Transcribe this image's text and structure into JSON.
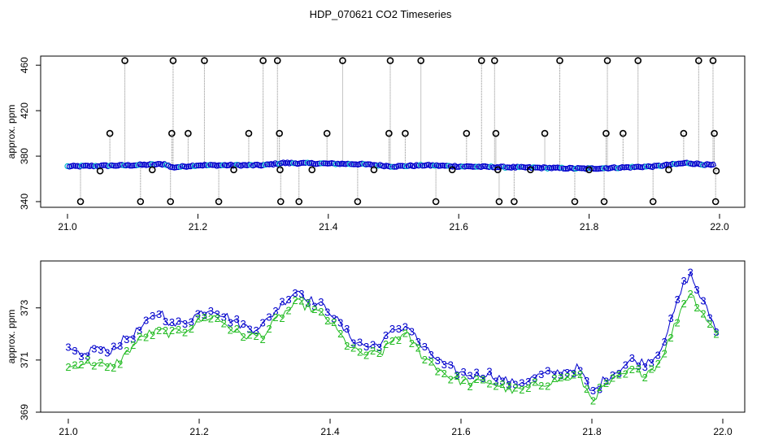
{
  "title": "HDP_070621  CO2 Timeseries",
  "colors": {
    "frame": "#000000",
    "series_gray": "#888888",
    "series_blue": "#0000cc",
    "series_green": "#22bb22",
    "series_cyan": "#00bbcc",
    "marker": "#000000"
  },
  "chart_data": [
    {
      "type": "scatter",
      "ylabel": "approx. ppm",
      "xlim": [
        21.0,
        22.0
      ],
      "ylim": [
        335,
        468
      ],
      "xticks": [
        "21.0",
        "21.2",
        "21.4",
        "21.6",
        "21.8",
        "22.0"
      ],
      "yticks": [
        "340",
        "380",
        "420",
        "460"
      ],
      "baseline": [
        [
          21.0,
          371
        ],
        [
          21.1,
          372
        ],
        [
          21.15,
          373
        ],
        [
          21.16,
          370
        ],
        [
          21.2,
          372
        ],
        [
          21.3,
          372
        ],
        [
          21.33,
          374
        ],
        [
          21.45,
          373
        ],
        [
          21.5,
          371
        ],
        [
          21.55,
          372
        ],
        [
          21.6,
          371
        ],
        [
          21.7,
          370
        ],
        [
          21.8,
          369
        ],
        [
          21.85,
          370
        ],
        [
          21.9,
          371
        ],
        [
          21.95,
          374
        ],
        [
          21.99,
          372
        ]
      ],
      "outliers": [
        [
          21.02,
          340
        ],
        [
          21.05,
          367
        ],
        [
          21.065,
          400
        ],
        [
          21.088,
          464
        ],
        [
          21.112,
          340
        ],
        [
          21.13,
          368
        ],
        [
          21.158,
          340
        ],
        [
          21.16,
          400
        ],
        [
          21.162,
          464
        ],
        [
          21.185,
          400
        ],
        [
          21.21,
          464
        ],
        [
          21.232,
          340
        ],
        [
          21.255,
          368
        ],
        [
          21.278,
          400
        ],
        [
          21.3,
          464
        ],
        [
          21.322,
          464
        ],
        [
          21.325,
          400
        ],
        [
          21.327,
          340
        ],
        [
          21.326,
          368
        ],
        [
          21.355,
          340
        ],
        [
          21.375,
          368
        ],
        [
          21.398,
          400
        ],
        [
          21.422,
          464
        ],
        [
          21.445,
          340
        ],
        [
          21.47,
          368
        ],
        [
          21.493,
          400
        ],
        [
          21.495,
          464
        ],
        [
          21.518,
          400
        ],
        [
          21.542,
          464
        ],
        [
          21.565,
          340
        ],
        [
          21.59,
          368
        ],
        [
          21.612,
          400
        ],
        [
          21.635,
          464
        ],
        [
          21.655,
          464
        ],
        [
          21.657,
          400
        ],
        [
          21.66,
          368
        ],
        [
          21.662,
          340
        ],
        [
          21.685,
          340
        ],
        [
          21.71,
          368
        ],
        [
          21.732,
          400
        ],
        [
          21.755,
          464
        ],
        [
          21.778,
          340
        ],
        [
          21.8,
          368
        ],
        [
          21.823,
          340
        ],
        [
          21.826,
          400
        ],
        [
          21.828,
          464
        ],
        [
          21.852,
          400
        ],
        [
          21.875,
          464
        ],
        [
          21.898,
          340
        ],
        [
          21.922,
          368
        ],
        [
          21.945,
          400
        ],
        [
          21.968,
          464
        ],
        [
          21.99,
          464
        ],
        [
          21.992,
          400
        ],
        [
          21.994,
          340
        ],
        [
          21.995,
          367
        ]
      ]
    },
    {
      "type": "line",
      "ylabel": "approx. ppm",
      "xlim": [
        21.0,
        22.0
      ],
      "ylim": [
        369,
        374.8
      ],
      "xticks": [
        "21.0",
        "21.2",
        "21.4",
        "21.6",
        "21.8",
        "22.0"
      ],
      "yticks": [
        "369",
        "371",
        "373"
      ],
      "series": [
        {
          "marker": "3",
          "points": [
            [
              21.0,
              371.4
            ],
            [
              21.02,
              371.1
            ],
            [
              21.04,
              371.5
            ],
            [
              21.06,
              371.3
            ],
            [
              21.08,
              371.7
            ],
            [
              21.1,
              372.0
            ],
            [
              21.12,
              372.4
            ],
            [
              21.14,
              372.9
            ],
            [
              21.16,
              372.3
            ],
            [
              21.18,
              372.5
            ],
            [
              21.2,
              372.8
            ],
            [
              21.22,
              373.0
            ],
            [
              21.24,
              372.7
            ],
            [
              21.26,
              372.4
            ],
            [
              21.28,
              372.2
            ],
            [
              21.3,
              372.4
            ],
            [
              21.32,
              373.0
            ],
            [
              21.34,
              373.5
            ],
            [
              21.35,
              373.7
            ],
            [
              21.37,
              373.3
            ],
            [
              21.4,
              372.9
            ],
            [
              21.42,
              372.2
            ],
            [
              21.44,
              371.7
            ],
            [
              21.46,
              371.5
            ],
            [
              21.48,
              371.7
            ],
            [
              21.5,
              372.2
            ],
            [
              21.52,
              372.3
            ],
            [
              21.54,
              371.5
            ],
            [
              21.56,
              371.1
            ],
            [
              21.58,
              370.7
            ],
            [
              21.6,
              370.5
            ],
            [
              21.62,
              370.4
            ],
            [
              21.64,
              370.5
            ],
            [
              21.66,
              370.3
            ],
            [
              21.68,
              370.1
            ],
            [
              21.7,
              370.2
            ],
            [
              21.72,
              370.4
            ],
            [
              21.74,
              370.5
            ],
            [
              21.76,
              370.6
            ],
            [
              21.78,
              370.7
            ],
            [
              21.8,
              369.7
            ],
            [
              21.82,
              370.3
            ],
            [
              21.84,
              370.6
            ],
            [
              21.86,
              371.0
            ],
            [
              21.88,
              370.9
            ],
            [
              21.9,
              371.2
            ],
            [
              21.92,
              372.4
            ],
            [
              21.94,
              373.9
            ],
            [
              21.95,
              374.3
            ],
            [
              21.97,
              373.2
            ],
            [
              21.99,
              372.2
            ]
          ]
        },
        {
          "marker": "2",
          "points": [
            [
              21.0,
              370.7
            ],
            [
              21.02,
              370.9
            ],
            [
              21.04,
              370.9
            ],
            [
              21.06,
              370.7
            ],
            [
              21.08,
              371.0
            ],
            [
              21.1,
              371.6
            ],
            [
              21.12,
              372.0
            ],
            [
              21.14,
              372.1
            ],
            [
              21.16,
              372.0
            ],
            [
              21.18,
              372.2
            ],
            [
              21.2,
              372.5
            ],
            [
              21.22,
              372.7
            ],
            [
              21.24,
              372.4
            ],
            [
              21.26,
              372.0
            ],
            [
              21.28,
              371.9
            ],
            [
              21.3,
              372.0
            ],
            [
              21.32,
              372.6
            ],
            [
              21.34,
              373.0
            ],
            [
              21.35,
              373.2
            ],
            [
              21.37,
              373.0
            ],
            [
              21.4,
              372.5
            ],
            [
              21.42,
              371.8
            ],
            [
              21.44,
              371.3
            ],
            [
              21.46,
              371.2
            ],
            [
              21.48,
              371.3
            ],
            [
              21.5,
              371.9
            ],
            [
              21.52,
              371.9
            ],
            [
              21.54,
              371.2
            ],
            [
              21.56,
              370.8
            ],
            [
              21.58,
              370.4
            ],
            [
              21.6,
              370.2
            ],
            [
              21.62,
              370.1
            ],
            [
              21.64,
              370.2
            ],
            [
              21.66,
              370.0
            ],
            [
              21.68,
              369.8
            ],
            [
              21.7,
              369.9
            ],
            [
              21.72,
              370.1
            ],
            [
              21.74,
              370.2
            ],
            [
              21.76,
              370.3
            ],
            [
              21.78,
              370.4
            ],
            [
              21.8,
              369.5
            ],
            [
              21.82,
              370.0
            ],
            [
              21.84,
              370.3
            ],
            [
              21.86,
              370.6
            ],
            [
              21.88,
              370.5
            ],
            [
              21.9,
              370.8
            ],
            [
              21.92,
              371.9
            ],
            [
              21.94,
              373.2
            ],
            [
              21.95,
              373.6
            ],
            [
              21.97,
              372.8
            ],
            [
              21.99,
              372.0
            ]
          ]
        }
      ]
    }
  ]
}
